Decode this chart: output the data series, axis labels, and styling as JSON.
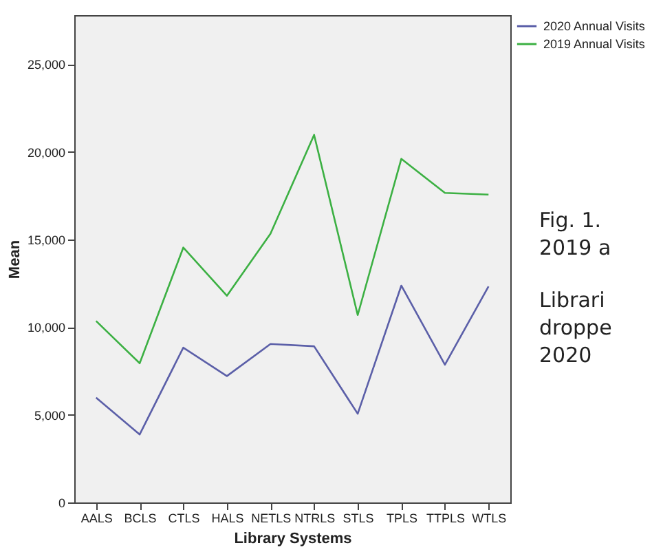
{
  "chart_data": {
    "type": "line",
    "xlabel": "Library Systems",
    "ylabel": "Mean",
    "categories": [
      "AALS",
      "BCLS",
      "CTLS",
      "HALS",
      "NETLS",
      "NTRLS",
      "STLS",
      "TPLS",
      "TTPLS",
      "WTLS"
    ],
    "series": [
      {
        "name": "2020 Annual Visits",
        "color": "#5b5fa8",
        "values": [
          5980,
          3880,
          8830,
          7210,
          9040,
          8910,
          5060,
          12370,
          7860,
          12320
        ]
      },
      {
        "name": "2019 Annual Visits",
        "color": "#3cb043",
        "values": [
          10350,
          7940,
          14540,
          11790,
          15330,
          20970,
          10690,
          19600,
          17660,
          17560
        ]
      }
    ],
    "ylim": [
      0,
      27800
    ],
    "yticks": [
      0,
      {
        "value": 5000,
        "label": "5,000"
      },
      {
        "value": 10000,
        "label": "10,000"
      },
      {
        "value": 15000,
        "label": "15,000"
      },
      {
        "value": 20000,
        "label": "20,000"
      },
      {
        "value": 25000,
        "label": "25,000"
      }
    ],
    "legend": "top right",
    "marker": "none",
    "line_style": "solid",
    "annotations": [
      "Fig. 1.",
      "2019 a",
      "Librari",
      "droppe",
      "2020"
    ]
  }
}
